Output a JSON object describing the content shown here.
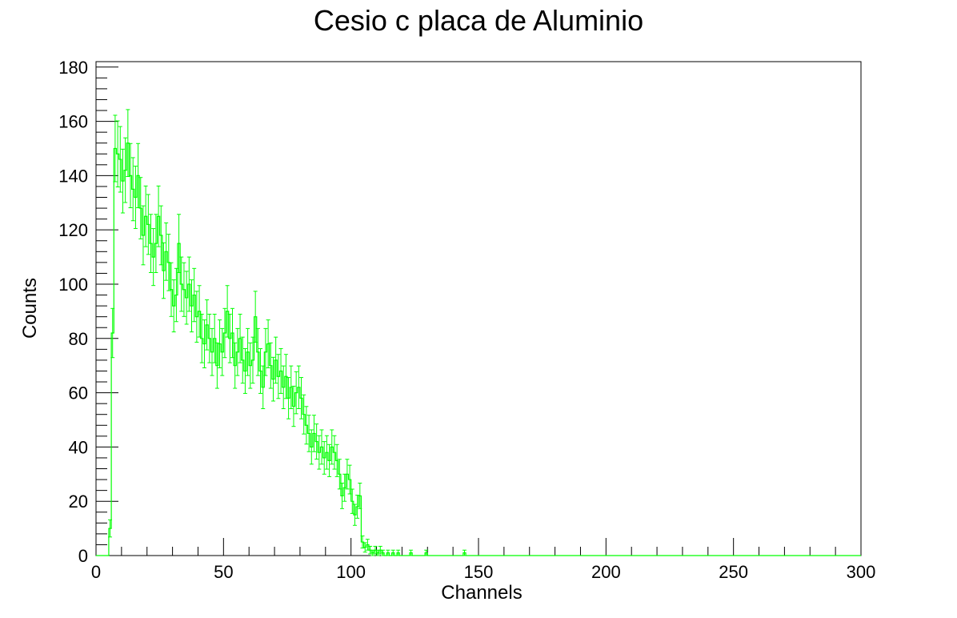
{
  "chart_data": {
    "type": "histogram",
    "title": "Cesio c placa de Aluminio",
    "xlabel": "Channels",
    "ylabel": "Counts",
    "xlim": [
      0,
      300
    ],
    "ylim": [
      0,
      182
    ],
    "x_ticks": [
      0,
      50,
      100,
      150,
      200,
      250,
      300
    ],
    "y_ticks": [
      0,
      20,
      40,
      60,
      80,
      100,
      120,
      140,
      160,
      180
    ],
    "grid": false,
    "legend": "none",
    "series_color": "#00ff00",
    "bin_width": 1,
    "bins": [
      [
        5.5,
        10
      ],
      [
        6.5,
        82
      ],
      [
        7.5,
        150
      ],
      [
        8.5,
        148
      ],
      [
        9.5,
        146
      ],
      [
        10.5,
        138
      ],
      [
        11.5,
        142
      ],
      [
        12.5,
        152
      ],
      [
        13.5,
        140
      ],
      [
        14.5,
        135
      ],
      [
        15.5,
        132
      ],
      [
        16.5,
        140
      ],
      [
        17.5,
        128
      ],
      [
        18.5,
        118
      ],
      [
        19.5,
        125
      ],
      [
        20.5,
        122
      ],
      [
        21.5,
        115
      ],
      [
        22.5,
        110
      ],
      [
        23.5,
        115
      ],
      [
        24.5,
        125
      ],
      [
        25.5,
        118
      ],
      [
        26.5,
        105
      ],
      [
        27.5,
        112
      ],
      [
        28.5,
        108
      ],
      [
        29.5,
        98
      ],
      [
        30.5,
        92
      ],
      [
        31.5,
        96
      ],
      [
        32.5,
        115
      ],
      [
        33.5,
        100
      ],
      [
        34.5,
        98
      ],
      [
        35.5,
        95
      ],
      [
        36.5,
        100
      ],
      [
        37.5,
        92
      ],
      [
        38.5,
        96
      ],
      [
        39.5,
        88
      ],
      [
        40.5,
        90
      ],
      [
        41.5,
        80
      ],
      [
        42.5,
        78
      ],
      [
        43.5,
        85
      ],
      [
        44.5,
        80
      ],
      [
        45.5,
        75
      ],
      [
        46.5,
        80
      ],
      [
        47.5,
        70
      ],
      [
        48.5,
        78
      ],
      [
        49.5,
        75
      ],
      [
        50.5,
        82
      ],
      [
        51.5,
        90
      ],
      [
        52.5,
        80
      ],
      [
        53.5,
        82
      ],
      [
        54.5,
        70
      ],
      [
        55.5,
        75
      ],
      [
        56.5,
        80
      ],
      [
        57.5,
        72
      ],
      [
        58.5,
        68
      ],
      [
        59.5,
        75
      ],
      [
        60.5,
        70
      ],
      [
        61.5,
        72
      ],
      [
        62.5,
        88
      ],
      [
        63.5,
        75
      ],
      [
        64.5,
        68
      ],
      [
        65.5,
        62
      ],
      [
        66.5,
        75
      ],
      [
        67.5,
        78
      ],
      [
        68.5,
        70
      ],
      [
        69.5,
        65
      ],
      [
        70.5,
        72
      ],
      [
        71.5,
        66
      ],
      [
        72.5,
        68
      ],
      [
        73.5,
        62
      ],
      [
        74.5,
        66
      ],
      [
        75.5,
        58
      ],
      [
        76.5,
        62
      ],
      [
        77.5,
        55
      ],
      [
        78.5,
        60
      ],
      [
        79.5,
        62
      ],
      [
        80.5,
        58
      ],
      [
        81.5,
        52
      ],
      [
        82.5,
        48
      ],
      [
        83.5,
        45
      ],
      [
        84.5,
        40
      ],
      [
        85.5,
        45
      ],
      [
        86.5,
        42
      ],
      [
        87.5,
        38
      ],
      [
        88.5,
        40
      ],
      [
        89.5,
        36
      ],
      [
        90.5,
        38
      ],
      [
        91.5,
        35
      ],
      [
        92.5,
        40
      ],
      [
        93.5,
        38
      ],
      [
        94.5,
        35
      ],
      [
        95.5,
        30
      ],
      [
        96.5,
        22
      ],
      [
        97.5,
        25
      ],
      [
        98.5,
        30
      ],
      [
        99.5,
        28
      ],
      [
        100.5,
        20
      ],
      [
        101.5,
        15
      ],
      [
        102.5,
        18
      ],
      [
        103.5,
        22
      ],
      [
        104.5,
        5
      ],
      [
        105.5,
        3
      ],
      [
        106.5,
        4
      ],
      [
        107.5,
        2
      ],
      [
        108.5,
        1
      ],
      [
        109.5,
        2
      ],
      [
        110.5,
        1
      ],
      [
        111.5,
        2
      ],
      [
        112.5,
        1
      ],
      [
        114.5,
        1
      ],
      [
        116.5,
        1
      ],
      [
        118.5,
        1
      ],
      [
        123.5,
        1
      ],
      [
        129.5,
        1
      ],
      [
        144.5,
        1
      ]
    ]
  }
}
